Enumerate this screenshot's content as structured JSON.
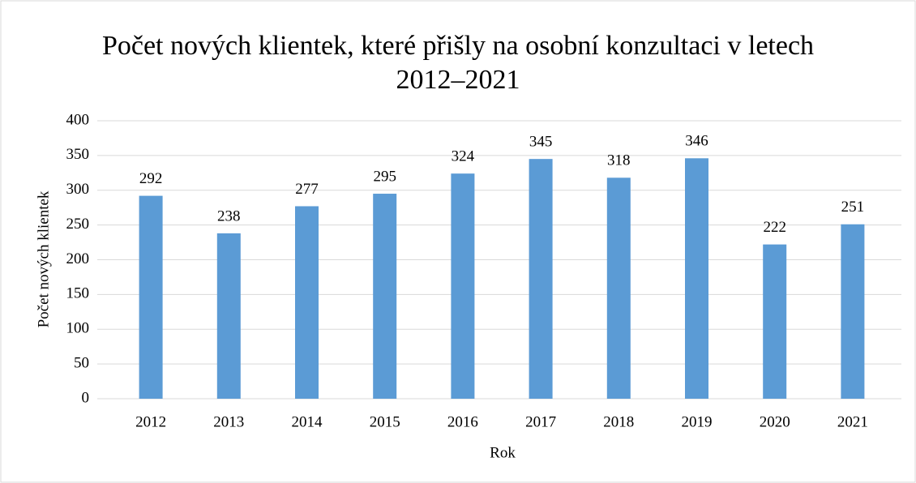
{
  "chart_data": {
    "type": "bar",
    "title": "Počet nových klientek, které přišly na osobní konzultaci v letech 2012–2021",
    "x_label": "Rok",
    "y_label": "Počet nových klientek",
    "categories": [
      "2012",
      "2013",
      "2014",
      "2015",
      "2016",
      "2017",
      "2018",
      "2019",
      "2020",
      "2021"
    ],
    "values": [
      292,
      238,
      277,
      295,
      324,
      345,
      318,
      346,
      222,
      251
    ],
    "color": "#5b9bd5",
    "ylim": [
      0,
      400
    ],
    "yticks": [
      0,
      50,
      100,
      150,
      200,
      250,
      300,
      350,
      400
    ],
    "grid": true
  }
}
